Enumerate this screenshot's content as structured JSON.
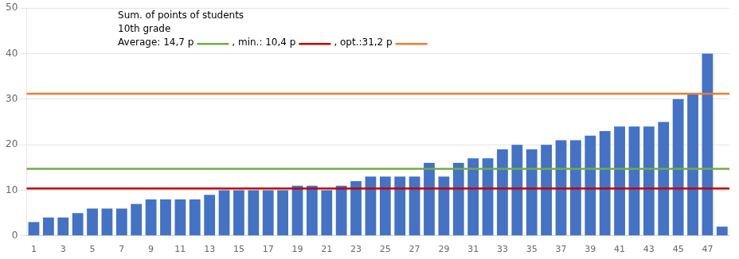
{
  "chart_data": {
    "type": "bar",
    "categories": [
      1,
      null,
      3,
      null,
      5,
      null,
      7,
      null,
      9,
      null,
      11,
      null,
      13,
      null,
      15,
      null,
      17,
      null,
      19,
      null,
      21,
      null,
      23,
      null,
      25,
      null,
      27,
      null,
      29,
      null,
      31,
      null,
      33,
      null,
      35,
      null,
      37,
      null,
      39,
      null,
      41,
      null,
      43,
      null,
      45,
      null,
      47,
      null
    ],
    "values": [
      3,
      4,
      4,
      5,
      6,
      6,
      6,
      7,
      8,
      8,
      8,
      8,
      9,
      10,
      10,
      10,
      10,
      10,
      11,
      11,
      10,
      11,
      12,
      13,
      13,
      13,
      13,
      16,
      13,
      16,
      17,
      17,
      19,
      20,
      19,
      20,
      21,
      21,
      22,
      23,
      24,
      24,
      24,
      25,
      30,
      31,
      40,
      2
    ],
    "color": "#4472C4",
    "ylim": [
      0,
      50
    ],
    "yticks": [
      0,
      10,
      20,
      30,
      40,
      50
    ],
    "grid": true,
    "hlines": [
      {
        "value": 14.7,
        "color": "#70AD47",
        "label": "Average: 14,7 p"
      },
      {
        "value": 10.4,
        "color": "#C00000",
        "label": ", min.: 10,4 p"
      },
      {
        "value": 31.2,
        "color": "#ED7D31",
        "label": ", opt.:31,2 p"
      }
    ],
    "annotations": [
      "Sum. of points of students",
      "10th grade"
    ]
  }
}
